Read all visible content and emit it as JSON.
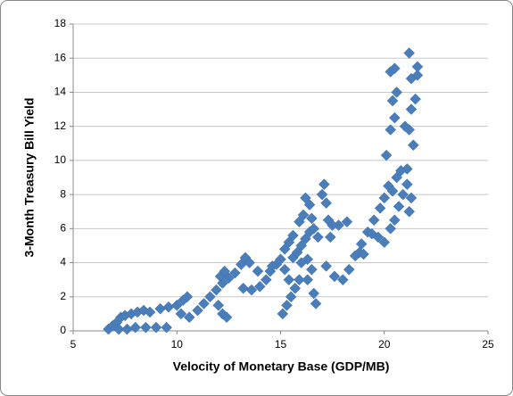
{
  "chart_data": {
    "type": "scatter",
    "x_label": "Velocity of Monetary Base (GDP/MB)",
    "y_label": "3-Month Treasury Bill Yield",
    "color": "#4a7ebb",
    "xlim": [
      5,
      25
    ],
    "xticks": [
      5,
      10,
      15,
      20,
      25
    ],
    "ylim": [
      0,
      18
    ],
    "yticks": [
      0,
      2,
      4,
      6,
      8,
      10,
      12,
      14,
      16,
      18
    ],
    "grid": true,
    "x": [
      6.7,
      6.9,
      7.1,
      7.3,
      7.5,
      7.8,
      8.1,
      8.4,
      8.7,
      7.2,
      7.6,
      8.0,
      8.5,
      9.0,
      9.5,
      9.2,
      9.6,
      10.0,
      10.3,
      10.5,
      10.2,
      10.6,
      11.0,
      11.3,
      11.6,
      11.9,
      12.2,
      12.5,
      12.8,
      12.1,
      12.3,
      12.0,
      12.2,
      12.4,
      13.1,
      13.3,
      13.5,
      13.2,
      13.6,
      14.0,
      14.3,
      14.5,
      14.8,
      15.0,
      15.2,
      15.4,
      15.6,
      15.1,
      15.3,
      15.5,
      15.7,
      15.9,
      15.2,
      15.6,
      15.8,
      16.0,
      16.2,
      16.4,
      16.2,
      16.4,
      16.5,
      16.6,
      16.3,
      16.5,
      16.6,
      16.7,
      16.8,
      17.0,
      17.1,
      17.2,
      17.3,
      17.4,
      17.2,
      17.6,
      18.0,
      18.3,
      18.6,
      18.9,
      19.2,
      19.5,
      19.8,
      20.0,
      20.2,
      19.7,
      20.0,
      20.3,
      20.5,
      20.7,
      20.9,
      21.1,
      21.2,
      21.3,
      20.1,
      20.3,
      20.5,
      20.4,
      20.6,
      20.3,
      20.5,
      21.0,
      21.2,
      21.3,
      21.4,
      21.5,
      21.6,
      21.2,
      21.3,
      21.6,
      21.1,
      17.8,
      18.2,
      17.5,
      18.8,
      19.0,
      14.6,
      13.9,
      15.9,
      16.1,
      16.0,
      15.4,
      16.3,
      19.4,
      20.6,
      20.8,
      20.4
    ],
    "values": [
      0.1,
      0.3,
      0.5,
      0.8,
      0.9,
      1.0,
      1.1,
      1.2,
      1.1,
      0.1,
      0.1,
      0.2,
      0.2,
      0.2,
      0.2,
      1.3,
      1.4,
      1.5,
      1.8,
      2.0,
      1.0,
      0.8,
      1.2,
      1.6,
      2.0,
      2.4,
      2.8,
      3.1,
      3.4,
      3.2,
      3.5,
      1.5,
      1.0,
      0.8,
      3.9,
      4.3,
      4.0,
      2.5,
      2.4,
      2.6,
      3.0,
      3.5,
      3.9,
      4.2,
      4.8,
      5.2,
      5.6,
      1.0,
      1.5,
      2.0,
      2.5,
      3.0,
      3.6,
      4.3,
      4.6,
      5.0,
      5.4,
      5.8,
      7.8,
      7.4,
      6.6,
      6.0,
      4.2,
      3.6,
      2.2,
      1.6,
      5.5,
      8.0,
      8.6,
      7.5,
      6.5,
      5.5,
      3.8,
      3.2,
      3.0,
      3.6,
      4.4,
      5.1,
      5.8,
      6.5,
      7.2,
      7.8,
      8.5,
      5.5,
      5.2,
      6.0,
      6.5,
      7.3,
      8.0,
      8.6,
      7.0,
      7.8,
      10.3,
      11.8,
      12.5,
      13.5,
      14.0,
      15.2,
      15.4,
      12.0,
      11.8,
      13.0,
      10.9,
      13.6,
      15.0,
      16.3,
      14.8,
      15.5,
      9.5,
      6.2,
      6.4,
      6.2,
      4.6,
      4.5,
      3.8,
      3.5,
      6.4,
      6.8,
      4.0,
      3.0,
      3.0,
      5.7,
      9.0,
      9.4,
      8.2
    ]
  }
}
